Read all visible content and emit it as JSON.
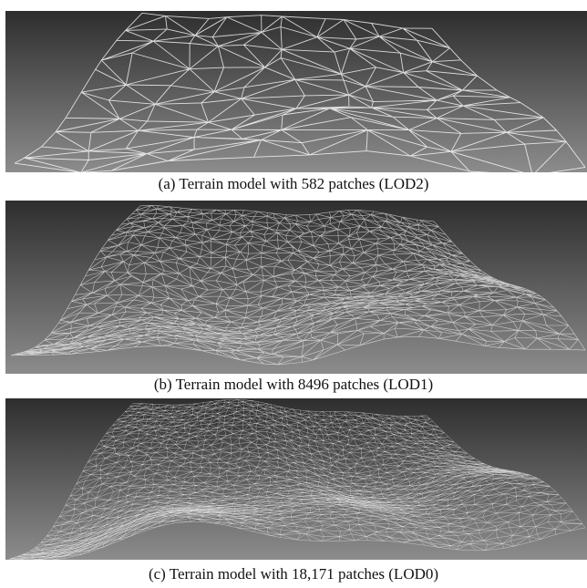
{
  "figure": {
    "panels": [
      {
        "id": "a",
        "caption": "(a) Terrain model with 582 patches (LOD2)",
        "patches": 582,
        "lod": "LOD2",
        "mesh_density": 10
      },
      {
        "id": "b",
        "caption": "(b) Terrain model with 8496 patches (LOD1)",
        "patches": 8496,
        "lod": "LOD1",
        "mesh_density": 28
      },
      {
        "id": "c",
        "caption": "(c) Terrain model with 18,171 patches (LOD0)",
        "patches": 18171,
        "lod": "LOD0",
        "mesh_density": 42
      }
    ],
    "colors": {
      "background_top": "#2e2e2e",
      "background_bottom": "#8c8c8c",
      "wire": "#ffffff"
    }
  }
}
